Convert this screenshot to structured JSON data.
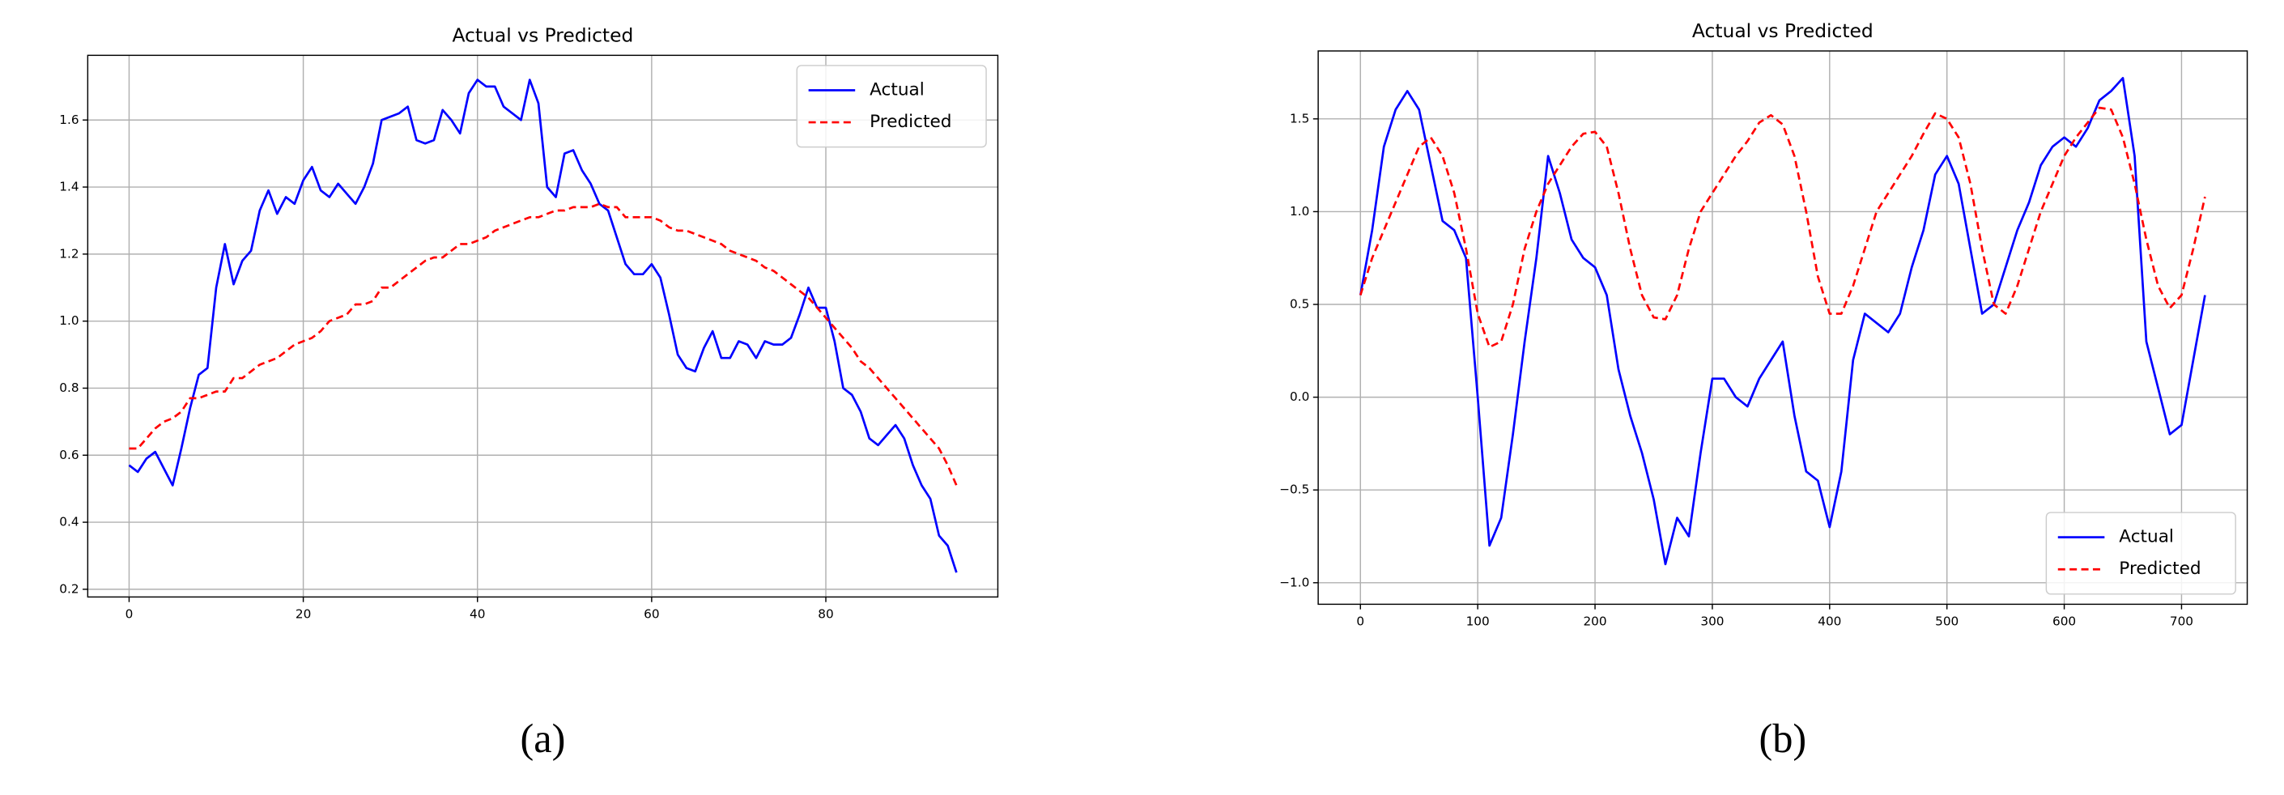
{
  "chart_data": [
    {
      "type": "line",
      "title": "Actual vs Predicted",
      "caption": "(a)",
      "x": [
        0,
        1,
        2,
        3,
        4,
        5,
        6,
        7,
        8,
        9,
        10,
        11,
        12,
        13,
        14,
        15,
        16,
        17,
        18,
        19,
        20,
        21,
        22,
        23,
        24,
        25,
        26,
        27,
        28,
        29,
        30,
        31,
        32,
        33,
        34,
        35,
        36,
        37,
        38,
        39,
        40,
        41,
        42,
        43,
        44,
        45,
        46,
        47,
        48,
        49,
        50,
        51,
        52,
        53,
        54,
        55,
        56,
        57,
        58,
        59,
        60,
        61,
        62,
        63,
        64,
        65,
        66,
        67,
        68,
        69,
        70,
        71,
        72,
        73,
        74,
        75,
        76,
        77,
        78,
        79,
        80,
        81,
        82,
        83,
        84,
        85,
        86,
        87,
        88,
        89,
        90,
        91,
        92,
        93,
        94,
        95
      ],
      "series": [
        {
          "name": "Actual",
          "color": "#0000ff",
          "linestyle": "solid",
          "values": [
            0.57,
            0.55,
            0.59,
            0.61,
            0.56,
            0.51,
            0.62,
            0.74,
            0.84,
            0.86,
            1.1,
            1.23,
            1.11,
            1.18,
            1.21,
            1.33,
            1.39,
            1.32,
            1.37,
            1.35,
            1.42,
            1.46,
            1.39,
            1.37,
            1.41,
            1.38,
            1.35,
            1.4,
            1.47,
            1.6,
            1.61,
            1.62,
            1.64,
            1.54,
            1.53,
            1.54,
            1.63,
            1.6,
            1.56,
            1.68,
            1.72,
            1.7,
            1.7,
            1.64,
            1.62,
            1.6,
            1.72,
            1.65,
            1.4,
            1.37,
            1.5,
            1.51,
            1.45,
            1.41,
            1.35,
            1.33,
            1.25,
            1.17,
            1.14,
            1.14,
            1.17,
            1.13,
            1.02,
            0.9,
            0.86,
            0.85,
            0.92,
            0.97,
            0.89,
            0.89,
            0.94,
            0.93,
            0.89,
            0.94,
            0.93,
            0.93,
            0.95,
            1.02,
            1.1,
            1.04,
            1.04,
            0.94,
            0.8,
            0.78,
            0.73,
            0.65,
            0.63,
            0.66,
            0.69,
            0.65,
            0.57,
            0.51,
            0.47,
            0.36,
            0.33,
            0.25
          ]
        },
        {
          "name": "Predicted",
          "color": "#ff0000",
          "linestyle": "dashed",
          "values": [
            0.62,
            0.62,
            0.65,
            0.68,
            0.7,
            0.71,
            0.73,
            0.77,
            0.77,
            0.78,
            0.79,
            0.79,
            0.83,
            0.83,
            0.85,
            0.87,
            0.88,
            0.89,
            0.91,
            0.93,
            0.94,
            0.95,
            0.97,
            1.0,
            1.01,
            1.02,
            1.05,
            1.05,
            1.06,
            1.1,
            1.1,
            1.12,
            1.14,
            1.16,
            1.18,
            1.19,
            1.19,
            1.21,
            1.23,
            1.23,
            1.24,
            1.25,
            1.27,
            1.28,
            1.29,
            1.3,
            1.31,
            1.31,
            1.32,
            1.33,
            1.33,
            1.34,
            1.34,
            1.34,
            1.35,
            1.34,
            1.34,
            1.31,
            1.31,
            1.31,
            1.31,
            1.3,
            1.28,
            1.27,
            1.27,
            1.26,
            1.25,
            1.24,
            1.23,
            1.21,
            1.2,
            1.19,
            1.18,
            1.16,
            1.15,
            1.13,
            1.11,
            1.09,
            1.07,
            1.04,
            1.01,
            0.98,
            0.95,
            0.92,
            0.88,
            0.86,
            0.83,
            0.8,
            0.77,
            0.74,
            0.71,
            0.68,
            0.65,
            0.62,
            0.57,
            0.51
          ]
        }
      ],
      "xlim": [
        -4.75,
        99.75
      ],
      "xticks": [
        0,
        20,
        40,
        60,
        80
      ],
      "ylim": [
        0.177,
        1.793
      ],
      "yticks": [
        0.2,
        0.4,
        0.6,
        0.8,
        {
          "value": 1,
          "label": "1.0"
        },
        1.2,
        1.4,
        1.6
      ],
      "grid": true,
      "legend": "upper right"
    },
    {
      "type": "line",
      "title": "Actual vs Predicted",
      "caption": "(b)",
      "x": [
        0,
        10,
        20,
        30,
        40,
        50,
        60,
        70,
        80,
        90,
        100,
        110,
        120,
        130,
        140,
        150,
        160,
        170,
        180,
        190,
        200,
        210,
        220,
        230,
        240,
        250,
        260,
        270,
        280,
        290,
        300,
        310,
        320,
        330,
        340,
        350,
        360,
        370,
        380,
        390,
        400,
        410,
        420,
        430,
        440,
        450,
        460,
        470,
        480,
        490,
        500,
        510,
        520,
        530,
        540,
        550,
        560,
        570,
        580,
        590,
        600,
        610,
        620,
        630,
        640,
        650,
        660,
        670,
        680,
        690,
        700,
        710,
        720
      ],
      "series": [
        {
          "name": "Actual",
          "color": "#0000ff",
          "linestyle": "solid",
          "values": [
            0.55,
            0.9,
            1.35,
            1.55,
            1.65,
            1.55,
            1.25,
            0.95,
            0.9,
            0.75,
            0.0,
            -0.8,
            -0.65,
            -0.2,
            0.3,
            0.75,
            1.3,
            1.1,
            0.85,
            0.75,
            0.7,
            0.55,
            0.15,
            -0.1,
            -0.3,
            -0.55,
            -0.9,
            -0.65,
            -0.75,
            -0.3,
            0.1,
            0.1,
            0.0,
            -0.05,
            0.1,
            0.2,
            0.3,
            -0.1,
            -0.4,
            -0.45,
            -0.7,
            -0.4,
            0.2,
            0.45,
            0.4,
            0.35,
            0.45,
            0.7,
            0.9,
            1.2,
            1.3,
            1.15,
            0.8,
            0.45,
            0.5,
            0.7,
            0.9,
            1.05,
            1.25,
            1.35,
            1.4,
            1.35,
            1.45,
            1.6,
            1.65,
            1.72,
            1.3,
            0.3,
            0.05,
            -0.2,
            -0.15,
            0.2,
            0.55
          ]
        },
        {
          "name": "Predicted",
          "color": "#ff0000",
          "linestyle": "dashed",
          "values": [
            0.55,
            0.75,
            0.9,
            1.05,
            1.2,
            1.35,
            1.4,
            1.3,
            1.1,
            0.8,
            0.45,
            0.27,
            0.3,
            0.5,
            0.8,
            1.0,
            1.15,
            1.25,
            1.35,
            1.42,
            1.43,
            1.35,
            1.1,
            0.8,
            0.55,
            0.43,
            0.42,
            0.55,
            0.8,
            1.0,
            1.1,
            1.2,
            1.3,
            1.38,
            1.48,
            1.52,
            1.47,
            1.3,
            1.0,
            0.65,
            0.45,
            0.45,
            0.6,
            0.8,
            1.0,
            1.1,
            1.2,
            1.3,
            1.42,
            1.53,
            1.5,
            1.4,
            1.15,
            0.8,
            0.5,
            0.45,
            0.6,
            0.8,
            1.0,
            1.15,
            1.3,
            1.4,
            1.48,
            1.56,
            1.55,
            1.4,
            1.15,
            0.85,
            0.6,
            0.48,
            0.55,
            0.8,
            1.08
          ]
        }
      ],
      "xlim": [
        -36,
        756
      ],
      "xticks": [
        0,
        100,
        200,
        300,
        400,
        500,
        600,
        700
      ],
      "ylim": [
        -1.116,
        1.866
      ],
      "yticks": [
        {
          "value": -1,
          "label": "−1.0"
        },
        {
          "value": -0.5,
          "label": "−0.5"
        },
        {
          "value": 0,
          "label": "0.0"
        },
        0.5,
        {
          "value": 1,
          "label": "1.0"
        },
        1.5
      ],
      "grid": true,
      "legend": "lower right"
    }
  ]
}
